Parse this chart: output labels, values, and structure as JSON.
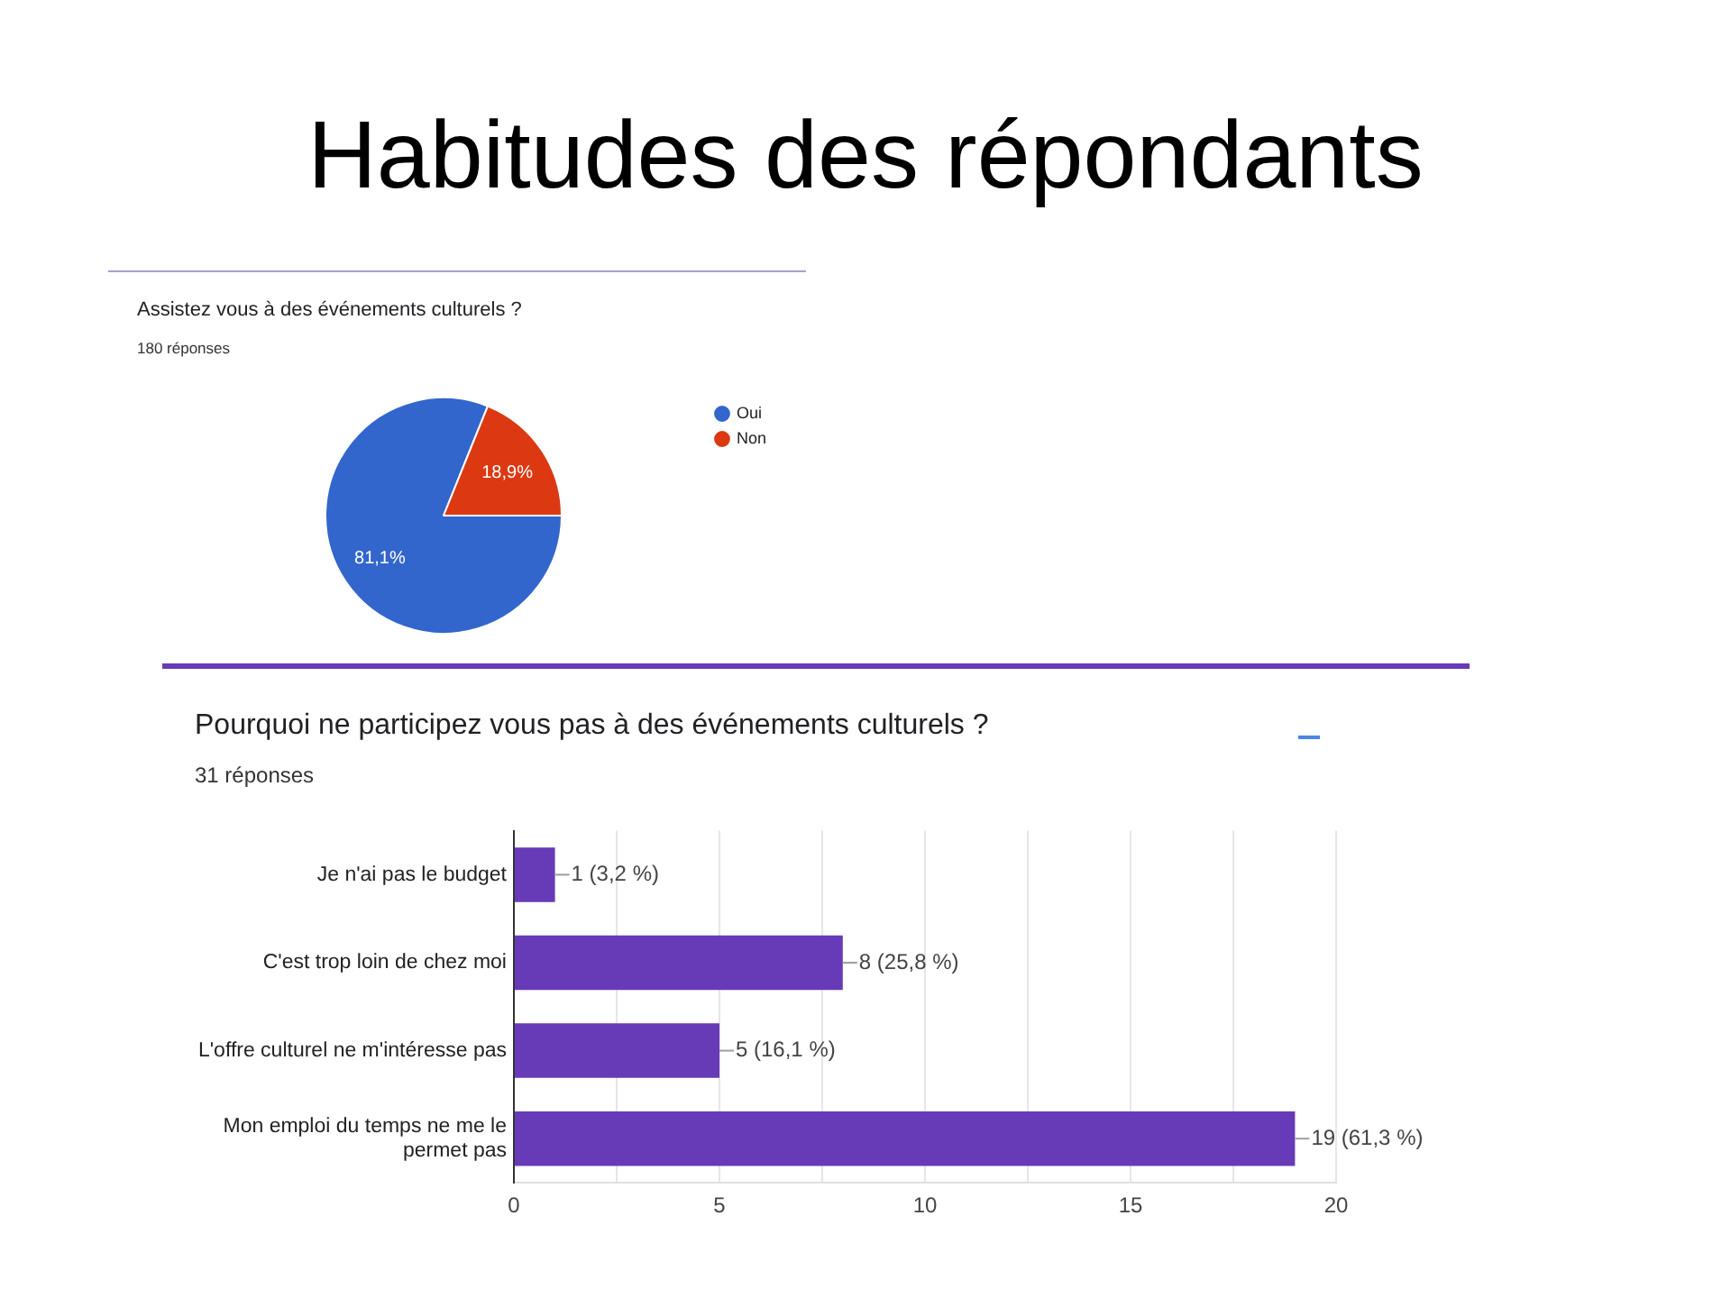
{
  "chart_data": [
    {
      "type": "pie",
      "title": "Assistez vous à des événements culturels ?",
      "subtitle": "180 réponses",
      "annotations": [
        "Habitudes des répondants"
      ],
      "categories": [
        "Oui",
        "Non"
      ],
      "values": [
        81.1,
        18.9
      ],
      "colors": [
        "#3366cc",
        "#dc3912"
      ],
      "value_labels": [
        "81,1%",
        "18,9%"
      ],
      "legend": "top right"
    },
    {
      "type": "bar",
      "orientation": "horizontal",
      "title": "Pourquoi ne participez vous pas à des événements culturels ?",
      "subtitle": "31 réponses",
      "categories": [
        "Je n'ai pas le budget",
        "C'est trop loin de chez moi",
        "L'offre culturel ne m'intéresse pas",
        "Mon emploi du temps ne me le permet pas"
      ],
      "values": [
        1,
        8,
        5,
        19
      ],
      "color": "#673ab7",
      "value_labels": [
        "1 (3,2 %)",
        "8 (25,8 %)",
        "5 (16,1 %)",
        "19 (61,3 %)"
      ],
      "xlim": [
        0,
        20
      ],
      "xticks": [
        0,
        {
          "value": 2.5,
          "label": null
        },
        5,
        {
          "value": 7.5,
          "label": null
        },
        10,
        {
          "value": 12.5,
          "label": null
        },
        15,
        {
          "value": 17.5,
          "label": null
        },
        20
      ],
      "grid": "x"
    }
  ]
}
